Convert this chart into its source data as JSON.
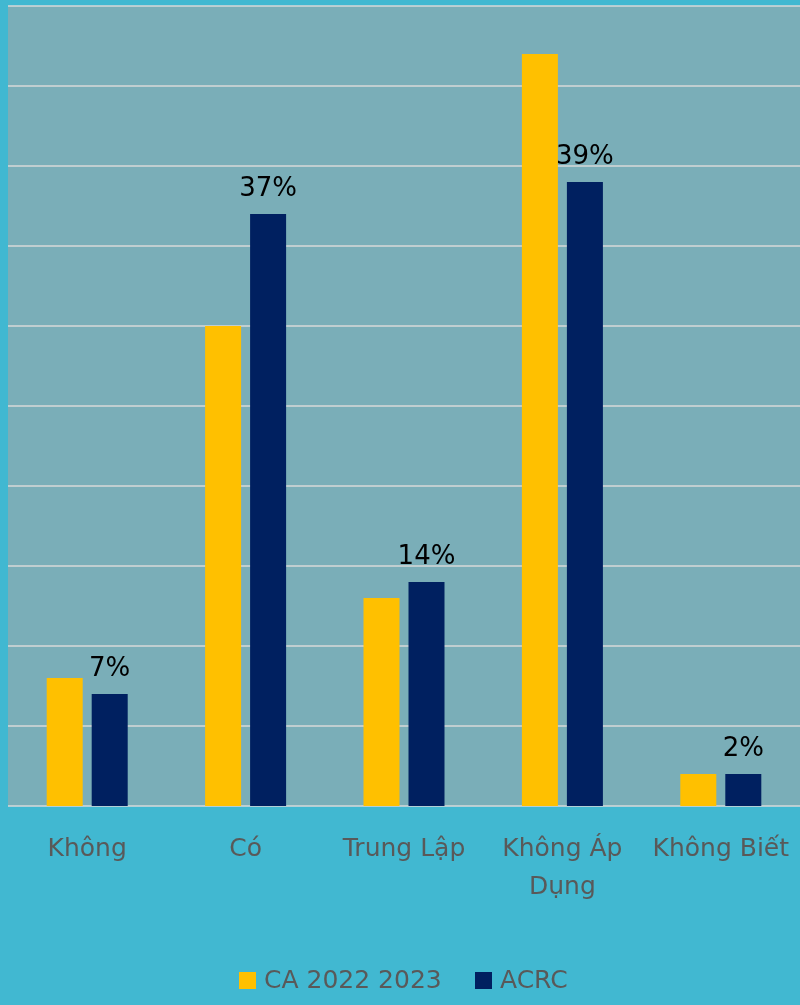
{
  "chart_data": {
    "type": "bar",
    "categories": [
      "Không",
      "Có",
      "Trung Lập",
      "Không Áp Dụng",
      "Không Biết"
    ],
    "series": [
      {
        "name": "CA 2022 2023",
        "color": "#ffc000",
        "values": [
          8,
          30,
          13,
          47,
          2
        ]
      },
      {
        "name": "ACRC",
        "color": "#002060",
        "values": [
          7,
          37,
          14,
          39,
          2
        ],
        "value_labels": [
          "7%",
          "37%",
          "14%",
          "39%",
          "2%"
        ]
      }
    ],
    "ylim": [
      0,
      50
    ],
    "yticks": [
      {
        "value": 0,
        "label": null
      },
      {
        "value": 5,
        "label": null
      },
      {
        "value": 10,
        "label": null
      },
      {
        "value": 15,
        "label": null
      },
      {
        "value": 20,
        "label": null
      },
      {
        "value": 25,
        "label": null
      },
      {
        "value": 30,
        "label": null
      },
      {
        "value": 35,
        "label": null
      },
      {
        "value": 40,
        "label": null
      },
      {
        "value": 45,
        "label": null
      },
      {
        "value": 50,
        "label": null
      }
    ],
    "grid": "y",
    "legend": "bottom",
    "tick_labels": "x"
  }
}
